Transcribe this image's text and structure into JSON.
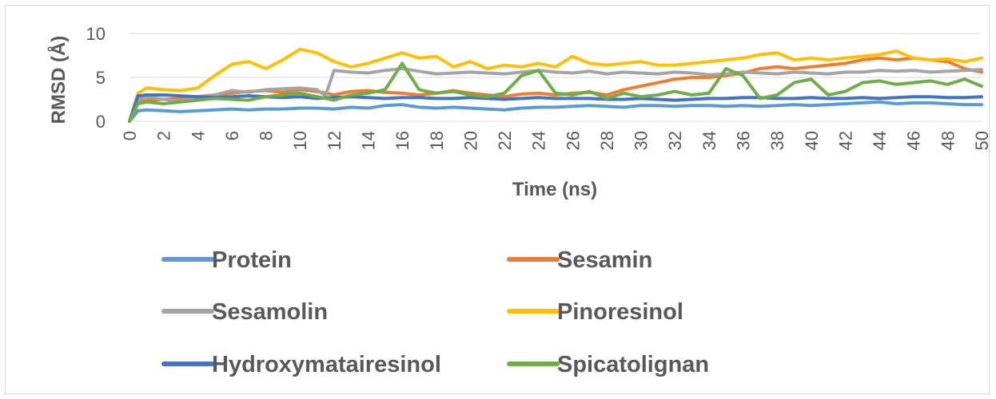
{
  "chart_data": {
    "type": "line",
    "title": "",
    "xlabel": "Time (ns)",
    "ylabel": "RMSD (Å)",
    "ylim": [
      0,
      10
    ],
    "xlim": [
      0,
      50
    ],
    "y_ticks": [
      "0",
      "5",
      "10"
    ],
    "x_ticks": [
      "0",
      "2",
      "4",
      "6",
      "8",
      "10",
      "12",
      "14",
      "16",
      "18",
      "20",
      "22",
      "24",
      "26",
      "28",
      "30",
      "32",
      "34",
      "36",
      "38",
      "40",
      "42",
      "44",
      "46",
      "48",
      "50"
    ],
    "grid": "horizontal",
    "legend_position": "bottom",
    "series": [
      {
        "name": "Protein",
        "color": "#5b9bd5",
        "x": [
          0,
          0.5,
          1,
          2,
          3,
          4,
          5,
          6,
          7,
          8,
          9,
          10,
          11,
          12,
          13,
          14,
          15,
          16,
          17,
          18,
          19,
          20,
          21,
          22,
          23,
          24,
          25,
          26,
          27,
          28,
          29,
          30,
          31,
          32,
          33,
          34,
          35,
          36,
          37,
          38,
          39,
          40,
          41,
          42,
          43,
          44,
          45,
          46,
          47,
          48,
          49,
          50
        ],
        "y": [
          0,
          1.2,
          1.3,
          1.2,
          1.1,
          1.2,
          1.3,
          1.4,
          1.3,
          1.4,
          1.4,
          1.5,
          1.5,
          1.4,
          1.6,
          1.5,
          1.8,
          1.9,
          1.6,
          1.5,
          1.6,
          1.5,
          1.4,
          1.3,
          1.5,
          1.6,
          1.6,
          1.7,
          1.8,
          1.7,
          1.6,
          1.8,
          1.8,
          1.7,
          1.8,
          1.8,
          1.7,
          1.8,
          1.7,
          1.8,
          1.9,
          1.8,
          1.9,
          2.0,
          2.1,
          2.2,
          2.0,
          2.1,
          2.1,
          2.0,
          1.9,
          1.9
        ]
      },
      {
        "name": "Sesamin",
        "color": "#ed7d31",
        "x": [
          0,
          0.5,
          1,
          2,
          3,
          4,
          5,
          6,
          7,
          8,
          9,
          10,
          11,
          12,
          13,
          14,
          15,
          16,
          17,
          18,
          19,
          20,
          21,
          22,
          23,
          24,
          25,
          26,
          27,
          28,
          29,
          30,
          31,
          32,
          33,
          34,
          35,
          36,
          37,
          38,
          39,
          40,
          41,
          42,
          43,
          44,
          45,
          46,
          47,
          48,
          49,
          50
        ],
        "y": [
          0,
          2.2,
          2.4,
          2.5,
          2.6,
          2.8,
          3.0,
          3.2,
          3.4,
          3.5,
          3.3,
          3.6,
          3.4,
          3.0,
          3.4,
          3.5,
          3.3,
          3.2,
          3.0,
          3.2,
          3.5,
          3.2,
          3.0,
          2.8,
          3.1,
          3.2,
          3.0,
          3.2,
          3.3,
          3.0,
          3.6,
          4.0,
          4.4,
          4.8,
          5.0,
          5.0,
          5.2,
          5.5,
          6.0,
          6.2,
          6.0,
          6.2,
          6.4,
          6.6,
          7.0,
          7.2,
          7.0,
          7.2,
          7.0,
          6.8,
          6.0,
          5.6
        ]
      },
      {
        "name": "Sesamolin",
        "color": "#a5a5a5",
        "x": [
          0,
          0.5,
          1,
          2,
          3,
          4,
          5,
          6,
          7,
          8,
          9,
          10,
          11,
          11.5,
          12,
          13,
          14,
          15,
          16,
          17,
          18,
          19,
          20,
          21,
          22,
          23,
          24,
          25,
          26,
          27,
          28,
          29,
          30,
          31,
          32,
          33,
          34,
          35,
          36,
          37,
          38,
          39,
          40,
          41,
          42,
          43,
          44,
          45,
          46,
          47,
          48,
          49,
          50
        ],
        "y": [
          0,
          2.5,
          2.8,
          2.5,
          2.3,
          2.6,
          3.0,
          3.5,
          3.3,
          3.6,
          3.7,
          3.8,
          3.6,
          2.9,
          5.8,
          5.6,
          5.5,
          5.8,
          6.0,
          5.7,
          5.4,
          5.5,
          5.6,
          5.5,
          5.4,
          5.6,
          5.8,
          5.6,
          5.5,
          5.7,
          5.4,
          5.6,
          5.5,
          5.4,
          5.6,
          5.5,
          5.3,
          5.4,
          5.6,
          5.5,
          5.4,
          5.6,
          5.5,
          5.4,
          5.6,
          5.6,
          5.8,
          5.7,
          5.8,
          5.6,
          5.7,
          5.8,
          5.9
        ]
      },
      {
        "name": "Pinoresinol",
        "color": "#ffc000",
        "x": [
          0,
          0.5,
          1,
          2,
          3,
          4,
          5,
          6,
          7,
          8,
          9,
          10,
          11,
          12,
          13,
          14,
          15,
          16,
          17,
          18,
          19,
          20,
          21,
          22,
          23,
          24,
          25,
          26,
          27,
          28,
          29,
          30,
          31,
          32,
          33,
          34,
          35,
          36,
          37,
          38,
          39,
          40,
          41,
          42,
          43,
          44,
          45,
          46,
          47,
          48,
          49,
          50
        ],
        "y": [
          0,
          3.2,
          3.8,
          3.6,
          3.5,
          3.8,
          5.2,
          6.5,
          6.8,
          6.0,
          7.0,
          8.2,
          7.8,
          6.8,
          6.2,
          6.6,
          7.2,
          7.8,
          7.2,
          7.4,
          6.2,
          6.8,
          6.0,
          6.4,
          6.2,
          6.6,
          6.2,
          7.4,
          6.6,
          6.4,
          6.6,
          6.8,
          6.4,
          6.4,
          6.6,
          6.8,
          7.0,
          7.2,
          7.6,
          7.8,
          7.0,
          7.2,
          7.0,
          7.2,
          7.4,
          7.6,
          8.0,
          7.2,
          7.0,
          7.1,
          6.8,
          7.2
        ]
      },
      {
        "name": "Hydroxymatairesinol",
        "color": "#4472c4",
        "x": [
          0,
          0.5,
          1,
          2,
          3,
          4,
          5,
          6,
          7,
          8,
          9,
          10,
          11,
          12,
          13,
          14,
          15,
          16,
          17,
          18,
          19,
          20,
          21,
          22,
          23,
          24,
          25,
          26,
          27,
          28,
          29,
          30,
          31,
          32,
          33,
          34,
          35,
          36,
          37,
          38,
          39,
          40,
          41,
          42,
          43,
          44,
          45,
          46,
          47,
          48,
          49,
          50
        ],
        "y": [
          0,
          2.9,
          3.0,
          3.0,
          2.9,
          2.8,
          2.7,
          2.8,
          2.9,
          2.8,
          2.7,
          2.8,
          2.6,
          2.7,
          2.8,
          2.7,
          2.6,
          2.7,
          2.7,
          2.6,
          2.6,
          2.7,
          2.6,
          2.5,
          2.6,
          2.7,
          2.6,
          2.6,
          2.6,
          2.5,
          2.5,
          2.6,
          2.5,
          2.4,
          2.5,
          2.6,
          2.6,
          2.7,
          2.7,
          2.6,
          2.6,
          2.7,
          2.6,
          2.6,
          2.7,
          2.6,
          2.7,
          2.8,
          2.8,
          2.7,
          2.7,
          2.8
        ]
      },
      {
        "name": "Spicatolignan",
        "color": "#70ad47",
        "x": [
          0,
          0.5,
          1,
          2,
          3,
          4,
          5,
          6,
          7,
          8,
          9,
          10,
          11,
          12,
          13,
          14,
          15,
          16,
          17,
          18,
          19,
          20,
          21,
          22,
          23,
          24,
          25,
          26,
          27,
          28,
          29,
          30,
          31,
          32,
          33,
          34,
          35,
          36,
          37,
          38,
          39,
          40,
          41,
          42,
          43,
          44,
          45,
          46,
          47,
          48,
          49,
          50
        ],
        "y": [
          0,
          2.0,
          2.2,
          2.0,
          2.2,
          2.4,
          2.6,
          2.5,
          2.4,
          2.8,
          3.0,
          3.2,
          2.8,
          2.4,
          3.0,
          3.2,
          3.6,
          6.6,
          3.6,
          3.2,
          3.4,
          3.0,
          2.8,
          3.2,
          5.2,
          5.8,
          3.2,
          3.0,
          3.4,
          2.6,
          3.2,
          2.8,
          3.0,
          3.4,
          3.0,
          3.2,
          6.0,
          5.2,
          2.6,
          3.0,
          4.4,
          4.8,
          3.0,
          3.4,
          4.4,
          4.6,
          4.2,
          4.4,
          4.6,
          4.2,
          4.8,
          4.0
        ]
      }
    ]
  }
}
